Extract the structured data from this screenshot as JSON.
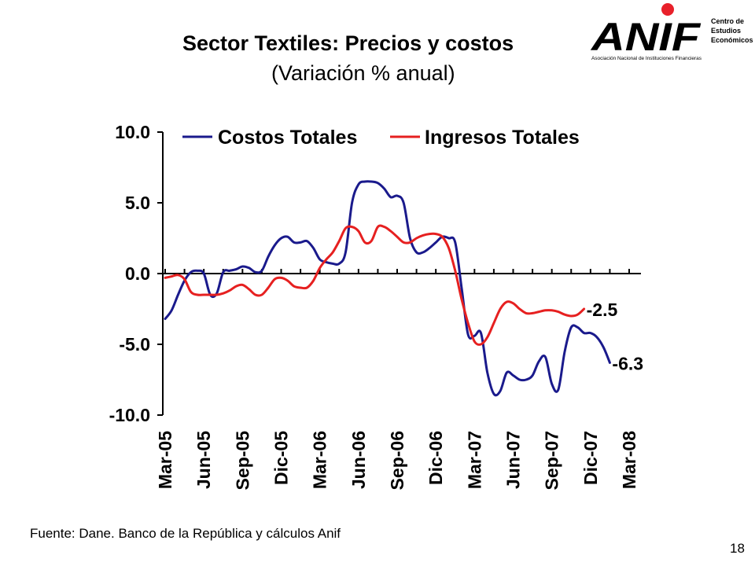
{
  "header": {
    "title": "Sector Textiles: Precios y costos",
    "subtitle": "(Variación % anual)"
  },
  "logo": {
    "text": "ANIF",
    "tagline": "Asociación Nacional de Instituciones Financieras",
    "side_text": [
      "Centro de",
      "Estudios",
      "Económicos"
    ],
    "dot_color": "#e8202a",
    "color": "#000000"
  },
  "footer": {
    "source": "Fuente: Dane. Banco de la República y cálculos Anif",
    "page_number": "18"
  },
  "chart_data": {
    "type": "line",
    "title": "Sector Textiles: Precios y costos",
    "subtitle": "(Variación % anual)",
    "ylim": [
      -10,
      10
    ],
    "yticks": [
      "10.0",
      "5.0",
      "0.0",
      "-5.0",
      "-10.0"
    ],
    "ytick_values": [
      10,
      5,
      0,
      -5,
      -10
    ],
    "x_tick_labels": [
      "Mar-05",
      "Jun-05",
      "Sep-05",
      "Dic-05",
      "Mar-06",
      "Jun-06",
      "Sep-06",
      "Dic-06",
      "Mar-07",
      "Jun-07",
      "Sep-07",
      "Dic-07",
      "Mar-08"
    ],
    "x_tick_months": [
      0,
      3,
      6,
      9,
      12,
      15,
      18,
      21,
      24,
      27,
      30,
      33,
      36
    ],
    "x_range_months": [
      0,
      36
    ],
    "legend_position": "top",
    "grid": false,
    "series": [
      {
        "name": "Costos Totales",
        "color": "#1a1a8c",
        "end_label": "-6.3",
        "points": [
          [
            0,
            -3.2
          ],
          [
            0.5,
            -2.6
          ],
          [
            1,
            -1.5
          ],
          [
            1.5,
            -0.5
          ],
          [
            2,
            0.1
          ],
          [
            2.5,
            0.2
          ],
          [
            3,
            0.0
          ],
          [
            3.5,
            -1.5
          ],
          [
            4,
            -1.4
          ],
          [
            4.5,
            0.1
          ],
          [
            5,
            0.2
          ],
          [
            5.5,
            0.3
          ],
          [
            6,
            0.5
          ],
          [
            6.5,
            0.4
          ],
          [
            7,
            0.1
          ],
          [
            7.5,
            0.2
          ],
          [
            8,
            1.2
          ],
          [
            8.5,
            2.0
          ],
          [
            9,
            2.5
          ],
          [
            9.5,
            2.6
          ],
          [
            10,
            2.2
          ],
          [
            10.5,
            2.2
          ],
          [
            11,
            2.3
          ],
          [
            11.5,
            1.8
          ],
          [
            12,
            1.0
          ],
          [
            12.5,
            0.8
          ],
          [
            13,
            0.7
          ],
          [
            13.5,
            0.7
          ],
          [
            14,
            1.5
          ],
          [
            14.5,
            5.0
          ],
          [
            15,
            6.3
          ],
          [
            15.5,
            6.5
          ],
          [
            16,
            6.5
          ],
          [
            16.5,
            6.4
          ],
          [
            17,
            6.0
          ],
          [
            17.5,
            5.4
          ],
          [
            18,
            5.5
          ],
          [
            18.5,
            5.0
          ],
          [
            19,
            2.5
          ],
          [
            19.5,
            1.5
          ],
          [
            20,
            1.5
          ],
          [
            20.5,
            1.8
          ],
          [
            21,
            2.2
          ],
          [
            21.5,
            2.6
          ],
          [
            22,
            2.5
          ],
          [
            22.5,
            2.2
          ],
          [
            23,
            -1.0
          ],
          [
            23.5,
            -4.3
          ],
          [
            24,
            -4.4
          ],
          [
            24.5,
            -4.2
          ],
          [
            25,
            -7.0
          ],
          [
            25.5,
            -8.5
          ],
          [
            26,
            -8.3
          ],
          [
            26.5,
            -7.0
          ],
          [
            27,
            -7.2
          ],
          [
            27.5,
            -7.5
          ],
          [
            28,
            -7.5
          ],
          [
            28.5,
            -7.2
          ],
          [
            29,
            -6.2
          ],
          [
            29.5,
            -5.9
          ],
          [
            30,
            -7.8
          ],
          [
            30.5,
            -8.2
          ],
          [
            31,
            -5.5
          ],
          [
            31.5,
            -3.8
          ],
          [
            32,
            -3.8
          ],
          [
            32.5,
            -4.2
          ],
          [
            33,
            -4.2
          ],
          [
            33.5,
            -4.5
          ],
          [
            34,
            -5.2
          ],
          [
            34.5,
            -6.3
          ]
        ]
      },
      {
        "name": "Ingresos Totales",
        "color": "#e62020",
        "end_label": "-2.5",
        "points": [
          [
            0,
            -0.3
          ],
          [
            0.5,
            -0.2
          ],
          [
            1,
            -0.1
          ],
          [
            1.5,
            -0.4
          ],
          [
            2,
            -1.3
          ],
          [
            2.5,
            -1.5
          ],
          [
            3,
            -1.5
          ],
          [
            3.5,
            -1.5
          ],
          [
            4,
            -1.5
          ],
          [
            4.5,
            -1.4
          ],
          [
            5,
            -1.2
          ],
          [
            5.5,
            -0.9
          ],
          [
            6,
            -0.8
          ],
          [
            6.5,
            -1.1
          ],
          [
            7,
            -1.5
          ],
          [
            7.5,
            -1.5
          ],
          [
            8,
            -1.0
          ],
          [
            8.5,
            -0.4
          ],
          [
            9,
            -0.3
          ],
          [
            9.5,
            -0.5
          ],
          [
            10,
            -0.9
          ],
          [
            10.5,
            -1.0
          ],
          [
            11,
            -1.0
          ],
          [
            11.5,
            -0.5
          ],
          [
            12,
            0.4
          ],
          [
            12.5,
            1.0
          ],
          [
            13,
            1.5
          ],
          [
            13.5,
            2.3
          ],
          [
            14,
            3.2
          ],
          [
            14.5,
            3.3
          ],
          [
            15,
            3.0
          ],
          [
            15.5,
            2.2
          ],
          [
            16,
            2.3
          ],
          [
            16.5,
            3.3
          ],
          [
            17,
            3.3
          ],
          [
            17.5,
            3.0
          ],
          [
            18,
            2.6
          ],
          [
            18.5,
            2.2
          ],
          [
            19,
            2.2
          ],
          [
            19.5,
            2.5
          ],
          [
            20,
            2.7
          ],
          [
            20.5,
            2.8
          ],
          [
            21,
            2.8
          ],
          [
            21.5,
            2.6
          ],
          [
            22,
            1.8
          ],
          [
            22.5,
            0.2
          ],
          [
            23,
            -1.8
          ],
          [
            23.5,
            -3.5
          ],
          [
            24,
            -4.8
          ],
          [
            24.5,
            -5.0
          ],
          [
            25,
            -4.5
          ],
          [
            25.5,
            -3.5
          ],
          [
            26,
            -2.5
          ],
          [
            26.5,
            -2.0
          ],
          [
            27,
            -2.1
          ],
          [
            27.5,
            -2.5
          ],
          [
            28,
            -2.8
          ],
          [
            28.5,
            -2.8
          ],
          [
            29,
            -2.7
          ],
          [
            29.5,
            -2.6
          ],
          [
            30,
            -2.6
          ],
          [
            30.5,
            -2.7
          ],
          [
            31,
            -2.9
          ],
          [
            31.5,
            -3.0
          ],
          [
            32,
            -2.9
          ],
          [
            32.5,
            -2.5
          ]
        ]
      }
    ]
  }
}
